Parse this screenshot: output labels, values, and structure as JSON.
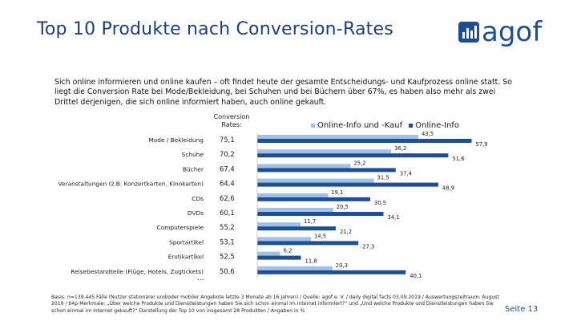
{
  "header": {
    "title": "Top 10 Produkte nach Conversion-Rates",
    "logo_text": "agof"
  },
  "intro": "Sich online informieren und online kaufen – oft findet heute der gesamte Entscheidungs- und Kaufprozess online statt. So liegt die Conversion Rate bei Mode/Bekleidung, bei Schuhen und bei Büchern über 67%, es haben also mehr als zwei Drittel derjenigen, die sich online informiert haben, auch online gekauft.",
  "column_header": "Conversion Rates:",
  "colors": {
    "series1": "#9dc3e6",
    "series2": "#1f4e96",
    "title": "#1f3d7a"
  },
  "chart_data": {
    "type": "bar",
    "orientation": "horizontal",
    "categories": [
      "Mode / Bekleidung",
      "Schuhe",
      "Bücher",
      "Veranstaltungen (z.B. Konzertkarten, Kinokarten)",
      "CDs",
      "DVDs",
      "Computerspiele",
      "Sportartikel",
      "Erotikartikel",
      "Reisebestandteile (Flüge, Hotels, Zugtickets)"
    ],
    "conversion_rates": [
      "75,1",
      "70,2",
      "67,4",
      "64,4",
      "62,6",
      "60,1",
      "55,2",
      "53,1",
      "52,5",
      "50,6"
    ],
    "series": [
      {
        "name": "Online-Info und -Kauf",
        "values": [
          43.5,
          36.2,
          25.2,
          31.5,
          19.1,
          20.5,
          11.7,
          14.5,
          6.2,
          20.3
        ],
        "labels": [
          "43,5",
          "36,2",
          "25,2",
          "31,5",
          "19,1",
          "20,5",
          "11,7",
          "14,5",
          "6,2",
          "20,3"
        ]
      },
      {
        "name": "Online-Info",
        "values": [
          57.9,
          51.6,
          37.4,
          48.9,
          30.5,
          34.1,
          21.2,
          27.3,
          11.8,
          40.1
        ],
        "labels": [
          "57,9",
          "51,6",
          "37,4",
          "48,9",
          "30,5",
          "34,1",
          "21,2",
          "27,3",
          "11,8",
          "40,1"
        ]
      }
    ],
    "legend_position": "top"
  },
  "ellipsis": "...",
  "footer": "Basis: n=139.445 Fälle (Nutzer stationärer und/oder mobiler Angebote letzte 3 Monate ab 16 Jahren) / Quelle: agof e. V. / daily digital facts 03.09.2019 / Auswertungszeitraum: August 2019 / b4p-Merkmale: „Über welche Produkte und Dienstleistungen haben Sie sich schon einmal im Internet informiert?“ und „Und welche Produkte und Dienstleistungen haben Sie schon einmal im Internet gekauft?“ Darstellung der Top 10 von insgesamt 28 Produkten / Angaben in %",
  "page_label": "Seite 13"
}
